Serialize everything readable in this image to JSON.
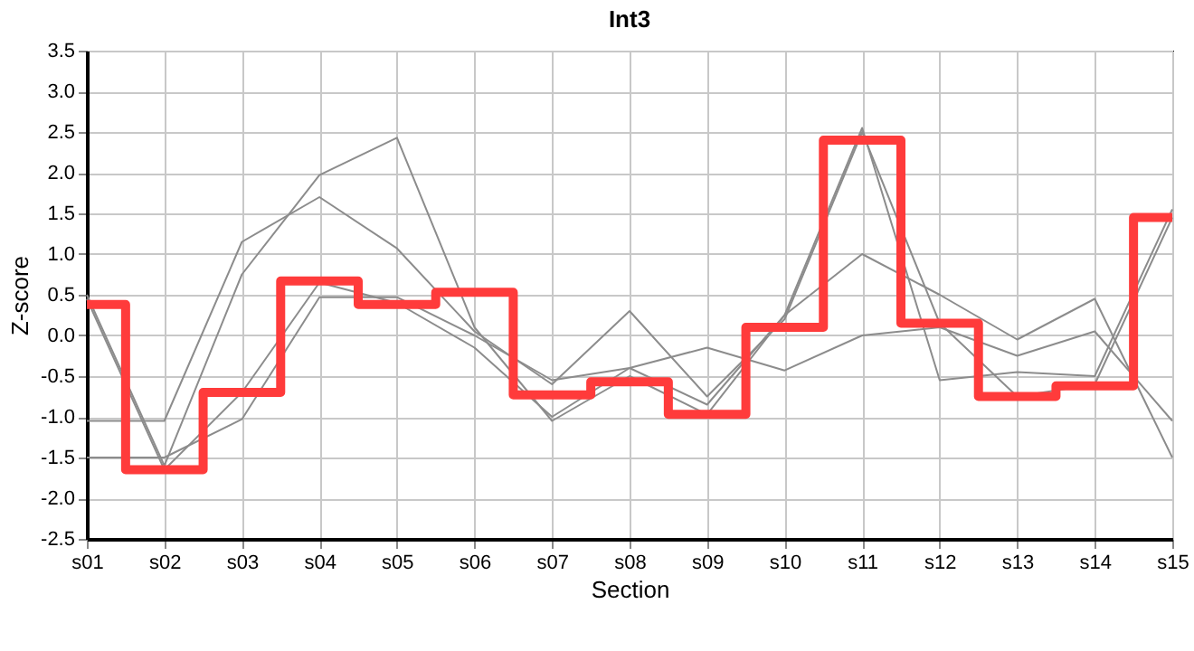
{
  "chart_data": {
    "type": "line",
    "title": "Int3",
    "xlabel": "Section",
    "ylabel": "Z-score",
    "categories": [
      "s01",
      "s02",
      "s03",
      "s04",
      "s05",
      "s06",
      "s07",
      "s08",
      "s09",
      "s10",
      "s11",
      "s12",
      "s13",
      "s14",
      "s15"
    ],
    "ylim": [
      -2.5,
      3.5
    ],
    "yticks": [
      -2.5,
      {
        "value": -2,
        "label": "-2.0"
      },
      -1.5,
      {
        "value": -1,
        "label": "-1.0"
      },
      -0.5,
      {
        "value": 0,
        "label": "0.0"
      },
      0.5,
      {
        "value": 1,
        "label": "1.0"
      },
      1.5,
      {
        "value": 2,
        "label": "2.0"
      },
      2.5,
      {
        "value": 3,
        "label": "3.0"
      },
      3.5
    ],
    "grid": true,
    "series": [
      {
        "type": "line",
        "color": "#8c8c8c",
        "values": [
          0.5,
          -1.6,
          0.75,
          1.97,
          2.43,
          0.1,
          -1.05,
          -0.5,
          -0.97,
          0.25,
          2.55,
          -0.55,
          -0.45,
          -0.5,
          1.55
        ]
      },
      {
        "type": "line",
        "color": "#8c8c8c",
        "values": [
          -1.05,
          -1.05,
          1.15,
          1.7,
          1.07,
          0.05,
          -0.6,
          0.3,
          -0.75,
          0.2,
          2.5,
          0.15,
          -0.75,
          -0.6,
          1.45
        ]
      },
      {
        "type": "line",
        "color": "#8c8c8c",
        "values": [
          -1.5,
          -1.5,
          -1.03,
          0.47,
          0.47,
          0.0,
          -0.55,
          -0.4,
          -0.15,
          -0.43,
          0.0,
          0.1,
          -0.25,
          0.05,
          -1.05
        ]
      },
      {
        "type": "line",
        "color": "#8c8c8c",
        "values": [
          0.45,
          -1.65,
          -0.7,
          0.65,
          0.4,
          -0.15,
          -1.0,
          -0.4,
          -0.85,
          0.25,
          1.0,
          0.5,
          -0.05,
          0.45,
          -1.5
        ]
      },
      {
        "type": "step",
        "color": "#ff3b3b",
        "values": [
          0.38,
          -1.65,
          -0.7,
          0.67,
          0.38,
          0.53,
          -0.73,
          -0.57,
          -0.97,
          0.1,
          2.4,
          0.15,
          -0.75,
          -0.62,
          1.45
        ]
      }
    ]
  }
}
